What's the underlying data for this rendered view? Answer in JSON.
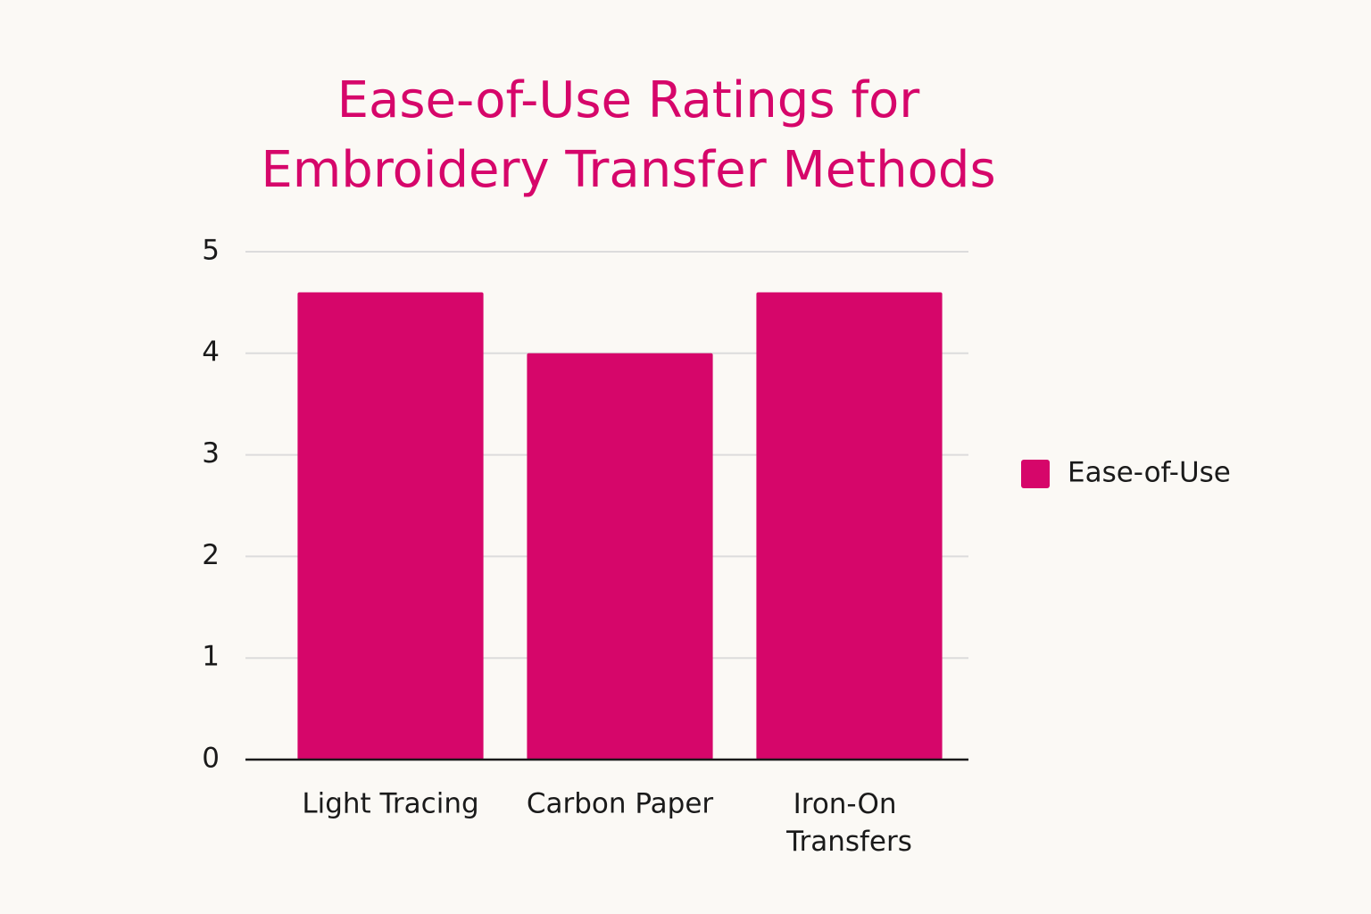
{
  "chart_data": {
    "type": "bar",
    "title": "Ease-of-Use Ratings for Embroidery Transfer Methods",
    "categories": [
      "Light Tracing",
      "Carbon Paper",
      "Iron-On Transfers"
    ],
    "series": [
      {
        "name": "Ease-of-Use",
        "color": "#d6066a",
        "values": [
          4.6,
          4.0,
          4.6
        ]
      }
    ],
    "ylim": [
      0,
      5
    ],
    "yticks": [
      0,
      1,
      2,
      3,
      4,
      5
    ],
    "grid": true,
    "legend": "right"
  }
}
